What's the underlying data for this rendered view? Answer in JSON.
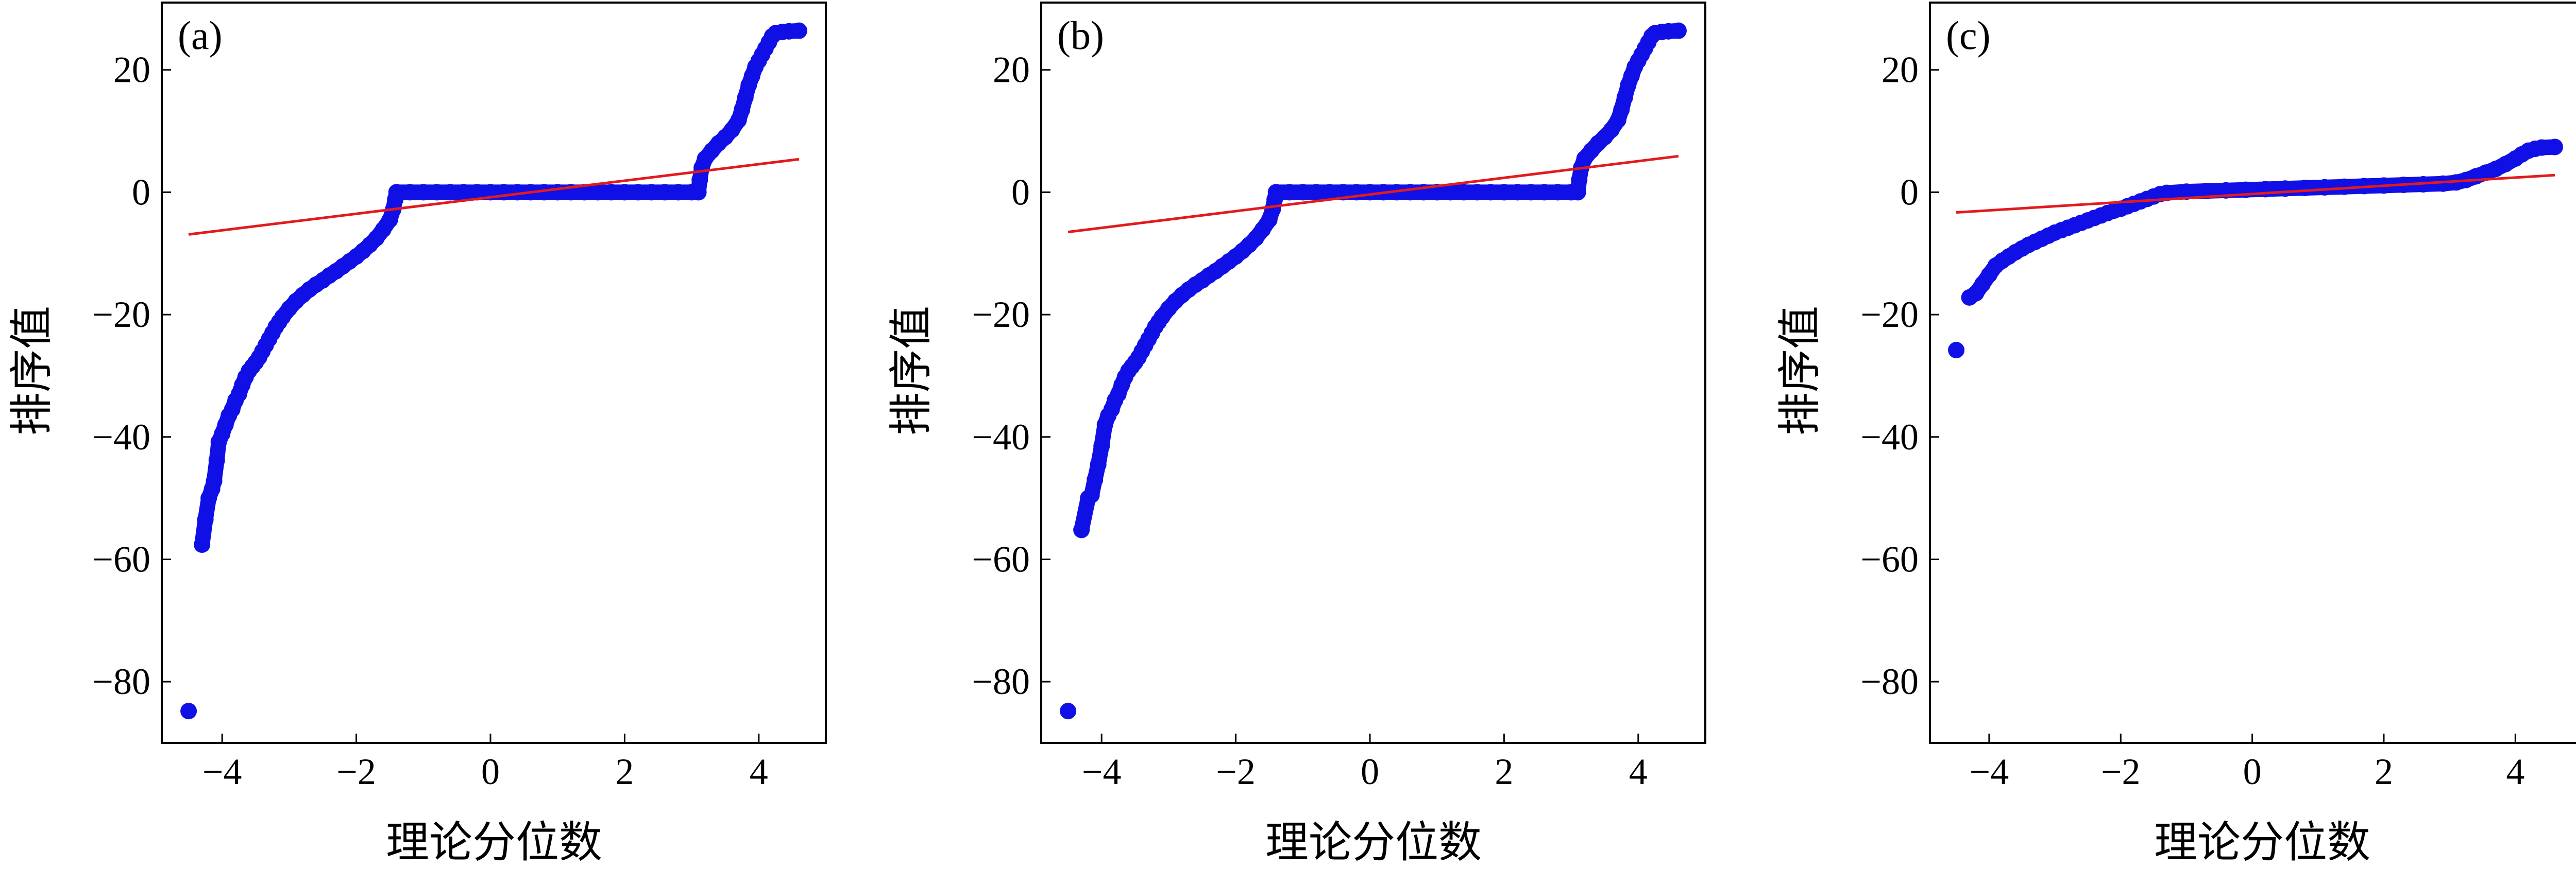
{
  "chart_data": [
    {
      "type": "scatter",
      "label": "(a)",
      "xlabel": "理论分位数",
      "ylabel": "排序值",
      "xlim": [
        -4.9,
        5.0
      ],
      "ylim": [
        -90,
        31
      ],
      "xticks": [
        -4,
        -2,
        0,
        2,
        4
      ],
      "yticks": [
        -80,
        -60,
        -40,
        -20,
        0,
        20
      ],
      "fit_line": {
        "x": [
          -4.5,
          4.6
        ],
        "y": [
          -6.9,
          5.4
        ]
      },
      "points": [
        [
          -4.5,
          -84.8
        ],
        [
          -4.3,
          -57.6
        ],
        [
          -4.25,
          -53.5
        ],
        [
          -4.2,
          -50
        ],
        [
          -4.15,
          -48.5
        ],
        [
          -4.12,
          -47.2
        ],
        [
          -4.08,
          -43.8
        ],
        [
          -4.05,
          -40.8
        ],
        [
          -4.0,
          -39.5
        ],
        [
          -3.95,
          -38
        ],
        [
          -3.9,
          -36.5
        ],
        [
          -3.85,
          -35.5
        ],
        [
          -3.8,
          -34
        ],
        [
          -3.75,
          -33
        ],
        [
          -3.7,
          -31.5
        ],
        [
          -3.65,
          -30.2
        ],
        [
          -3.6,
          -29.2
        ],
        [
          -3.55,
          -28.5
        ],
        [
          -3.5,
          -27.8
        ],
        [
          -3.45,
          -27
        ],
        [
          -3.4,
          -26
        ],
        [
          -3.35,
          -25
        ],
        [
          -3.3,
          -24
        ],
        [
          -3.25,
          -23
        ],
        [
          -3.2,
          -22
        ],
        [
          -3.15,
          -21.2
        ],
        [
          -3.1,
          -20.4
        ],
        [
          -3.0,
          -19
        ],
        [
          -2.9,
          -17.8
        ],
        [
          -2.8,
          -16.8
        ],
        [
          -2.7,
          -15.9
        ],
        [
          -2.6,
          -15.1
        ],
        [
          -2.5,
          -14.4
        ],
        [
          -2.4,
          -13.6
        ],
        [
          -2.3,
          -12.9
        ],
        [
          -2.2,
          -12.1
        ],
        [
          -2.1,
          -11.3
        ],
        [
          -2.0,
          -10.5
        ],
        [
          -1.9,
          -9.6
        ],
        [
          -1.8,
          -8.6
        ],
        [
          -1.7,
          -7.5
        ],
        [
          -1.6,
          -6.1
        ],
        [
          -1.5,
          -4.5
        ],
        [
          -1.45,
          -2.8
        ],
        [
          -1.42,
          -1.2
        ],
        [
          -1.4,
          0
        ],
        [
          -1.2,
          0
        ],
        [
          -1.0,
          0
        ],
        [
          -0.8,
          0
        ],
        [
          -0.6,
          0
        ],
        [
          -0.4,
          0
        ],
        [
          -0.2,
          0
        ],
        [
          0.0,
          0
        ],
        [
          0.2,
          0
        ],
        [
          0.4,
          0
        ],
        [
          0.6,
          0
        ],
        [
          0.8,
          0
        ],
        [
          1.0,
          0
        ],
        [
          1.2,
          0
        ],
        [
          1.4,
          0
        ],
        [
          1.6,
          0
        ],
        [
          1.8,
          0
        ],
        [
          2.0,
          0
        ],
        [
          2.2,
          0
        ],
        [
          2.4,
          0
        ],
        [
          2.6,
          0
        ],
        [
          2.8,
          0
        ],
        [
          3.0,
          0
        ],
        [
          3.1,
          0
        ],
        [
          3.12,
          2
        ],
        [
          3.15,
          4
        ],
        [
          3.2,
          5.5
        ],
        [
          3.3,
          6.8
        ],
        [
          3.4,
          8
        ],
        [
          3.5,
          9
        ],
        [
          3.6,
          10.2
        ],
        [
          3.7,
          11.8
        ],
        [
          3.75,
          13.5
        ],
        [
          3.8,
          15.5
        ],
        [
          3.85,
          17.5
        ],
        [
          3.9,
          19
        ],
        [
          3.95,
          20.5
        ],
        [
          4.0,
          21.5
        ],
        [
          4.05,
          22.5
        ],
        [
          4.1,
          23.5
        ],
        [
          4.15,
          24.5
        ],
        [
          4.2,
          25.5
        ],
        [
          4.25,
          26
        ],
        [
          4.35,
          26.2
        ],
        [
          4.45,
          26.3
        ],
        [
          4.6,
          26.4
        ]
      ]
    },
    {
      "type": "scatter",
      "label": "(b)",
      "xlabel": "理论分位数",
      "ylabel": "排序值",
      "xlim": [
        -4.9,
        5.0
      ],
      "ylim": [
        -90,
        31
      ],
      "xticks": [
        -4,
        -2,
        0,
        2,
        4
      ],
      "yticks": [
        -80,
        -60,
        -40,
        -20,
        0,
        20
      ],
      "fit_line": {
        "x": [
          -4.5,
          4.6
        ],
        "y": [
          -6.5,
          5.9
        ]
      },
      "points": [
        [
          -4.5,
          -84.8
        ],
        [
          -4.3,
          -55.2
        ],
        [
          -4.2,
          -50
        ],
        [
          -4.15,
          -49.5
        ],
        [
          -4.1,
          -47
        ],
        [
          -4.05,
          -44.5
        ],
        [
          -4.0,
          -41.5
        ],
        [
          -3.95,
          -38
        ],
        [
          -3.9,
          -36.5
        ],
        [
          -3.85,
          -35.5
        ],
        [
          -3.8,
          -34
        ],
        [
          -3.75,
          -33
        ],
        [
          -3.7,
          -31.5
        ],
        [
          -3.65,
          -30.2
        ],
        [
          -3.6,
          -29.2
        ],
        [
          -3.55,
          -28.5
        ],
        [
          -3.5,
          -27.8
        ],
        [
          -3.45,
          -27
        ],
        [
          -3.4,
          -26
        ],
        [
          -3.35,
          -25
        ],
        [
          -3.3,
          -24
        ],
        [
          -3.25,
          -23
        ],
        [
          -3.2,
          -22
        ],
        [
          -3.15,
          -21.2
        ],
        [
          -3.1,
          -20.4
        ],
        [
          -3.0,
          -19
        ],
        [
          -2.9,
          -17.8
        ],
        [
          -2.8,
          -16.8
        ],
        [
          -2.7,
          -15.9
        ],
        [
          -2.6,
          -15.1
        ],
        [
          -2.5,
          -14.4
        ],
        [
          -2.4,
          -13.6
        ],
        [
          -2.3,
          -12.9
        ],
        [
          -2.2,
          -12.1
        ],
        [
          -2.1,
          -11.3
        ],
        [
          -2.0,
          -10.5
        ],
        [
          -1.9,
          -9.6
        ],
        [
          -1.8,
          -8.6
        ],
        [
          -1.7,
          -7.5
        ],
        [
          -1.6,
          -6.1
        ],
        [
          -1.5,
          -4.5
        ],
        [
          -1.45,
          -2.8
        ],
        [
          -1.42,
          -1.2
        ],
        [
          -1.4,
          0
        ],
        [
          -1.2,
          0
        ],
        [
          -1.0,
          0
        ],
        [
          -0.8,
          0
        ],
        [
          -0.6,
          0
        ],
        [
          -0.4,
          0
        ],
        [
          -0.2,
          0
        ],
        [
          0.0,
          0
        ],
        [
          0.2,
          0
        ],
        [
          0.4,
          0
        ],
        [
          0.6,
          0
        ],
        [
          0.8,
          0
        ],
        [
          1.0,
          0
        ],
        [
          1.2,
          0
        ],
        [
          1.4,
          0
        ],
        [
          1.6,
          0
        ],
        [
          1.8,
          0
        ],
        [
          2.0,
          0
        ],
        [
          2.2,
          0
        ],
        [
          2.4,
          0
        ],
        [
          2.6,
          0
        ],
        [
          2.8,
          0
        ],
        [
          3.0,
          0
        ],
        [
          3.1,
          0
        ],
        [
          3.12,
          2
        ],
        [
          3.15,
          4
        ],
        [
          3.2,
          5.5
        ],
        [
          3.3,
          6.8
        ],
        [
          3.4,
          8
        ],
        [
          3.5,
          9
        ],
        [
          3.6,
          10.2
        ],
        [
          3.7,
          11.8
        ],
        [
          3.75,
          13.5
        ],
        [
          3.8,
          15.5
        ],
        [
          3.85,
          17.5
        ],
        [
          3.9,
          19
        ],
        [
          3.95,
          20.5
        ],
        [
          4.0,
          21.5
        ],
        [
          4.05,
          22.5
        ],
        [
          4.1,
          23.5
        ],
        [
          4.15,
          24.5
        ],
        [
          4.2,
          25.5
        ],
        [
          4.25,
          26
        ],
        [
          4.35,
          26.2
        ],
        [
          4.45,
          26.3
        ],
        [
          4.6,
          26.4
        ]
      ]
    },
    {
      "type": "scatter",
      "label": "(c)",
      "xlabel": "理论分位数",
      "ylabel": "排序值",
      "xlim": [
        -4.9,
        5.0
      ],
      "ylim": [
        -90,
        31
      ],
      "xticks": [
        -4,
        -2,
        0,
        2,
        4
      ],
      "yticks": [
        -80,
        -60,
        -40,
        -20,
        0,
        20
      ],
      "fit_line": {
        "x": [
          -4.5,
          4.6
        ],
        "y": [
          -3.3,
          2.8
        ]
      },
      "points": [
        [
          -4.5,
          -25.8
        ],
        [
          -4.3,
          -17.2
        ],
        [
          -4.2,
          -16.5
        ],
        [
          -4.1,
          -15
        ],
        [
          -4.0,
          -13.5
        ],
        [
          -3.9,
          -12
        ],
        [
          -3.8,
          -11.2
        ],
        [
          -3.7,
          -10.5
        ],
        [
          -3.6,
          -9.8
        ],
        [
          -3.5,
          -9.2
        ],
        [
          -3.4,
          -8.6
        ],
        [
          -3.3,
          -8.1
        ],
        [
          -3.2,
          -7.6
        ],
        [
          -3.1,
          -7.1
        ],
        [
          -3.0,
          -6.6
        ],
        [
          -2.9,
          -6.2
        ],
        [
          -2.8,
          -5.8
        ],
        [
          -2.7,
          -5.4
        ],
        [
          -2.6,
          -5.0
        ],
        [
          -2.5,
          -4.6
        ],
        [
          -2.4,
          -4.2
        ],
        [
          -2.3,
          -3.8
        ],
        [
          -2.2,
          -3.4
        ],
        [
          -2.1,
          -3.0
        ],
        [
          -2.0,
          -2.7
        ],
        [
          -1.9,
          -2.3
        ],
        [
          -1.8,
          -1.9
        ],
        [
          -1.7,
          -1.5
        ],
        [
          -1.6,
          -1.1
        ],
        [
          -1.5,
          -0.7
        ],
        [
          -1.4,
          -0.3
        ],
        [
          -1.3,
          -0.1
        ],
        [
          -1.0,
          0.1
        ],
        [
          -0.7,
          0.2
        ],
        [
          -0.4,
          0.3
        ],
        [
          -0.1,
          0.4
        ],
        [
          0.2,
          0.5
        ],
        [
          0.5,
          0.6
        ],
        [
          0.8,
          0.7
        ],
        [
          1.1,
          0.8
        ],
        [
          1.4,
          0.9
        ],
        [
          1.7,
          1.0
        ],
        [
          2.0,
          1.1
        ],
        [
          2.3,
          1.2
        ],
        [
          2.6,
          1.3
        ],
        [
          2.9,
          1.4
        ],
        [
          3.1,
          1.6
        ],
        [
          3.25,
          2.0
        ],
        [
          3.4,
          2.6
        ],
        [
          3.55,
          3.2
        ],
        [
          3.7,
          3.8
        ],
        [
          3.85,
          4.6
        ],
        [
          4.0,
          5.5
        ],
        [
          4.1,
          6.2
        ],
        [
          4.2,
          6.8
        ],
        [
          4.3,
          7.1
        ],
        [
          4.4,
          7.3
        ],
        [
          4.6,
          7.4
        ]
      ]
    }
  ]
}
